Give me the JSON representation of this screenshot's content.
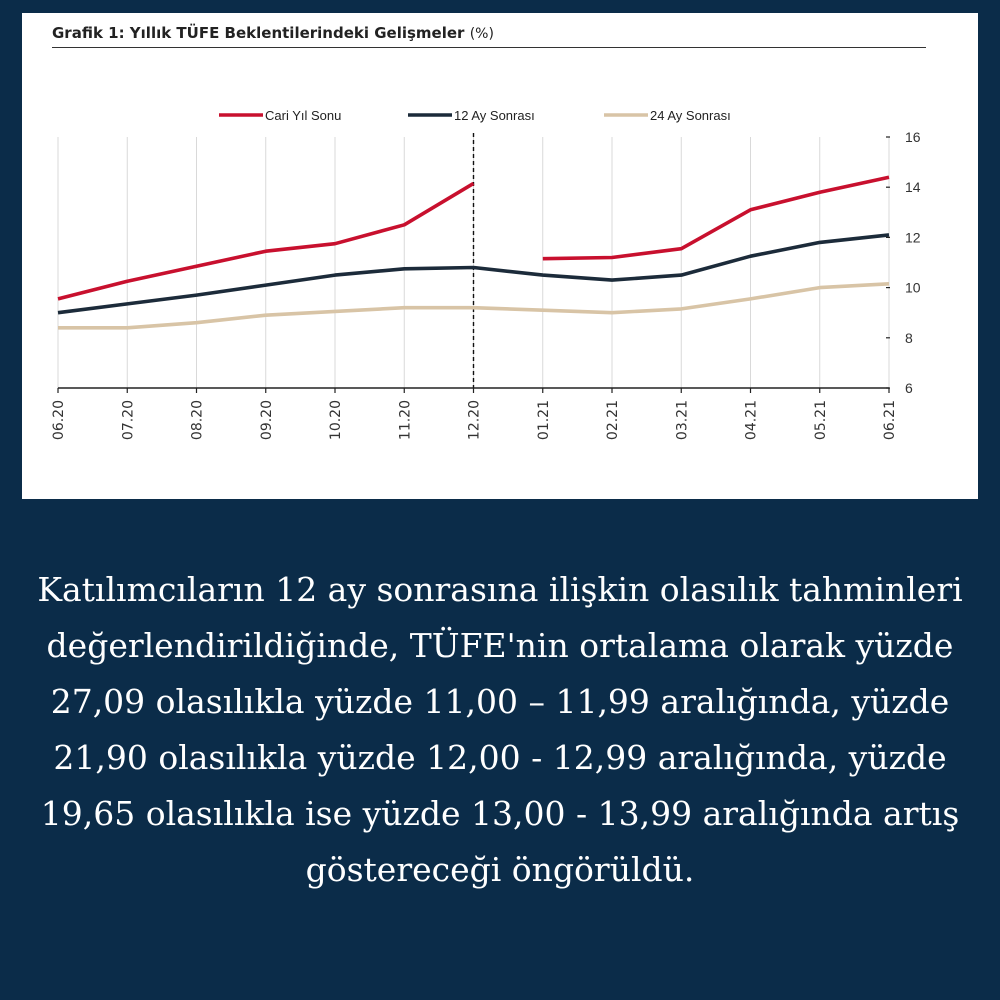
{
  "chart_data": {
    "type": "line",
    "title": "Grafik 1: Yıllık TÜFE Beklentilerindeki Gelişmeler",
    "unit": "(%)",
    "categories": [
      "06.20",
      "07.20",
      "08.20",
      "09.20",
      "10.20",
      "11.20",
      "12.20",
      "01.21",
      "02.21",
      "03.21",
      "04.21",
      "05.21",
      "06.21"
    ],
    "ylim": [
      6,
      16
    ],
    "yticks": [
      "16",
      "14",
      "12",
      "10",
      "8",
      "6"
    ],
    "ytick_values": [
      16,
      14,
      12,
      10,
      8,
      6
    ],
    "grid": true,
    "legend_position": "top",
    "axis_position": "right",
    "series": [
      {
        "name": "Cari Yıl Sonu",
        "color": "#c8102e",
        "values": [
          9.55,
          10.25,
          10.85,
          11.45,
          11.75,
          12.5,
          14.15,
          11.15,
          11.2,
          11.55,
          13.1,
          13.8,
          14.4
        ]
      },
      {
        "name": "12 Ay Sonrası",
        "color": "#1c2b3a",
        "values": [
          9.0,
          9.35,
          9.7,
          10.1,
          10.5,
          10.75,
          10.8,
          10.5,
          10.3,
          10.5,
          11.25,
          11.8,
          12.1
        ]
      },
      {
        "name": "24 Ay Sonrası",
        "color": "#d8c4a6",
        "values": [
          8.4,
          8.4,
          8.6,
          8.9,
          9.05,
          9.2,
          9.2,
          9.1,
          9.0,
          9.15,
          9.55,
          10.0,
          10.15
        ]
      }
    ],
    "gaps": [
      {
        "series": 0,
        "between": [
          "12.20",
          "01.21"
        ]
      }
    ],
    "vertical_marker": "12.20"
  },
  "caption": "Katılımcıların 12 ay sonrasına ilişkin olasılık tahminleri değerlendirildiğinde, TÜFE'nin ortalama olarak yüzde 27,09 olasılıkla yüzde 11,00 – 11,99 aralığında, yüzde 21,90 olasılıkla yüzde 12,00 - 12,99 aralığında, yüzde 19,65 olasılıkla ise yüzde 13,00 - 13,99 aralığında artış göstereceği öngörüldü.",
  "colors": {
    "background": "#0b2c49",
    "panel": "#ffffff"
  }
}
